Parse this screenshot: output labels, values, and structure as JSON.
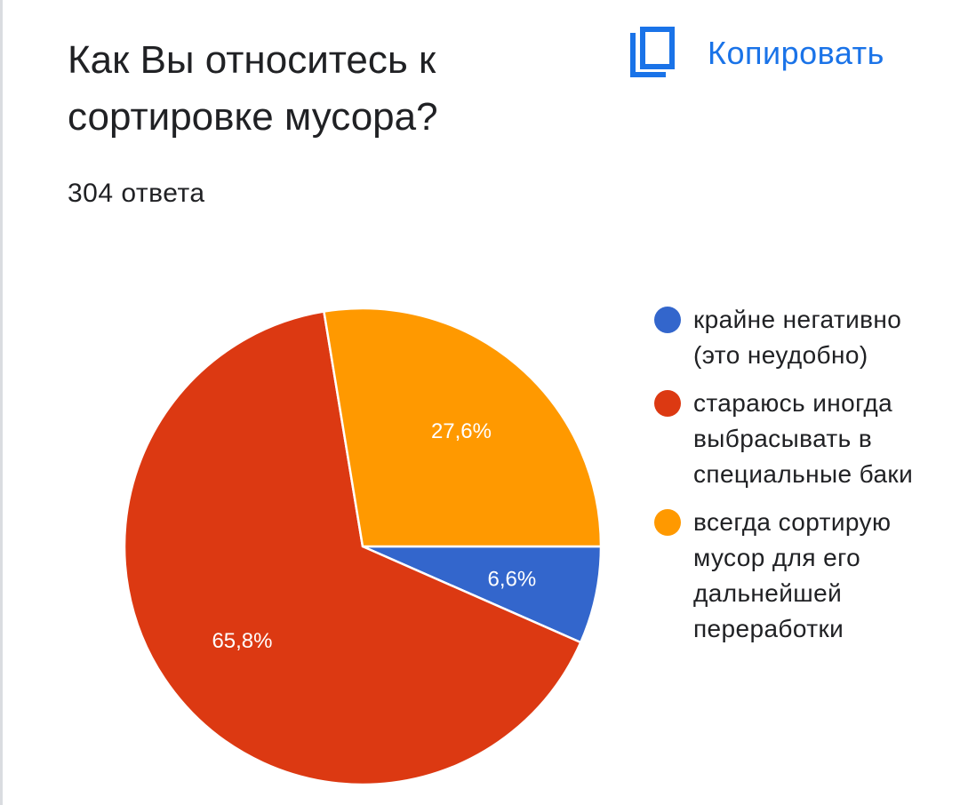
{
  "header": {
    "title": "Как Вы относитесь к сортировке мусора?",
    "responses_count": "304 ответа",
    "copy_label": "Копировать",
    "copy_icon": "copy-icon"
  },
  "colors": {
    "accent": "#1a73e8",
    "blue": "#3366cc",
    "red": "#dc3912",
    "orange": "#ff9900"
  },
  "chart_data": {
    "type": "pie",
    "title": "Как Вы относитесь к сортировке мусора?",
    "legend_position": "right",
    "categories": [
      "крайне негативно (это неудобно)",
      "стараюсь иногда выбрасывать в специальные баки",
      "всегда сортирую мусор для его дальнейшей переработки"
    ],
    "values": [
      6.6,
      65.8,
      27.6
    ],
    "data_labels": [
      "6,6%",
      "65,8%",
      "27,6%"
    ],
    "colors": [
      "#3366cc",
      "#dc3912",
      "#ff9900"
    ]
  }
}
